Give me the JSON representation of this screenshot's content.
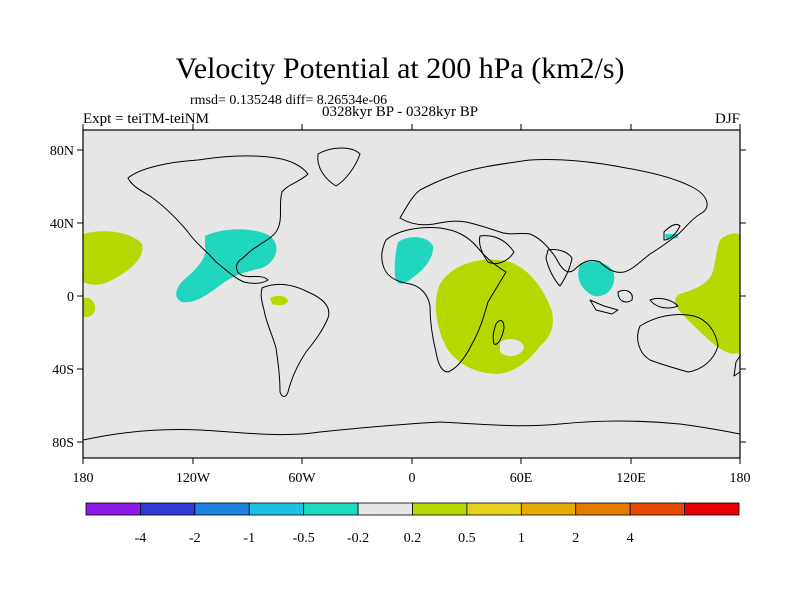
{
  "title": "Velocity Potential at 200 hPa (km2/s)",
  "stats": "rmsd= 0.135248 diff= 8.26534e-06",
  "experiment": "Expt = teiTM-teiNM",
  "period": "0328kyr BP - 0328kyr BP",
  "season": "DJF",
  "map": {
    "projection": "cylindrical equidistant",
    "lat_range": [
      -90,
      90
    ],
    "lon_range": [
      -180,
      180
    ],
    "lat_ticks": [
      "80N",
      "40N",
      "0",
      "40S",
      "80S"
    ],
    "lon_ticks": [
      "180",
      "120W",
      "60W",
      "0",
      "60E",
      "120E",
      "180"
    ],
    "background_color": "#e6e6e6",
    "coastline_color": "#000000"
  },
  "contour_regions": [
    {
      "name": "central-north-pacific",
      "category": "0.2 to 0.5",
      "color": "#b4d900"
    },
    {
      "name": "central-america-gulf",
      "category": "-0.5 to -0.2",
      "color": "#20d6be"
    },
    {
      "name": "south-america-amazon",
      "category": "0.2 to 0.5",
      "color": "#b4d900"
    },
    {
      "name": "west-africa",
      "category": "-0.5 to -0.2",
      "color": "#20d6be"
    },
    {
      "name": "east-africa-indian-ocean",
      "category": "0.2 to 0.5",
      "color": "#b4d900"
    },
    {
      "name": "indochina",
      "category": "-0.5 to -0.2",
      "color": "#20d6be"
    },
    {
      "name": "japan",
      "category": "-0.5 to -0.2",
      "color": "#20d6be"
    },
    {
      "name": "west-pacific-australia",
      "category": "0.2 to 0.5",
      "color": "#b4d900"
    }
  ],
  "colorbar": {
    "colors": [
      "#8b1ae6",
      "#2c3bd6",
      "#1a82e0",
      "#1cc0e6",
      "#1cdcc4",
      "#e6e6e6",
      "#b4d900",
      "#e6d21a",
      "#e6aa00",
      "#e67a00",
      "#e64a00",
      "#e60000"
    ],
    "labels": [
      "-4",
      "-2",
      "-1",
      "-0.5",
      "-0.2",
      "0.2",
      "0.5",
      "1",
      "2",
      "4"
    ]
  }
}
